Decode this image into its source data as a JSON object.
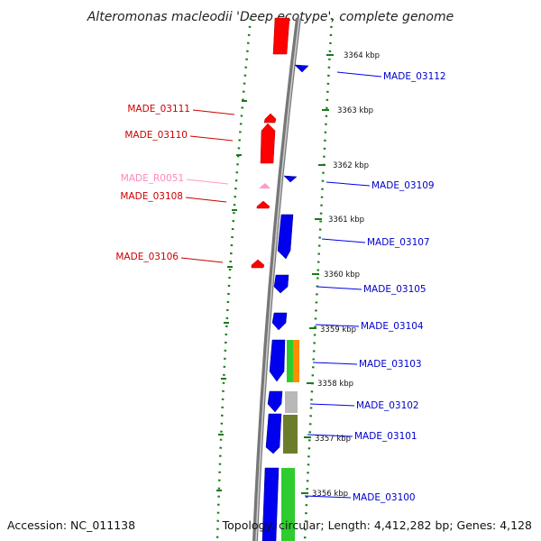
{
  "title": "Alteromonas macleodii 'Deep ecotype', complete genome",
  "accession": "Accession: NC_011138",
  "topology": "Topology: circular; Length: 4,412,282 bp; Genes: 4,128",
  "colors": {
    "forward": "#ff0000",
    "reverse": "#0000ee",
    "rna": "#ff99cc",
    "scale": "#1a7a1a",
    "backbone": "#888888"
  },
  "scale_marks": [
    {
      "label": "3364 kbp"
    },
    {
      "label": "3363 kbp"
    },
    {
      "label": "3362 kbp"
    },
    {
      "label": "3361 kbp"
    },
    {
      "label": "3360 kbp"
    },
    {
      "label": "3359 kbp"
    },
    {
      "label": "3358 kbp"
    },
    {
      "label": "3357 kbp"
    },
    {
      "label": "3356 kbp"
    }
  ],
  "left_labels": [
    {
      "text": "MADE_03111",
      "kind": "forward"
    },
    {
      "text": "MADE_03110",
      "kind": "forward"
    },
    {
      "text": "MADE_R0051",
      "kind": "rna"
    },
    {
      "text": "MADE_03108",
      "kind": "forward"
    },
    {
      "text": "MADE_03106",
      "kind": "forward"
    }
  ],
  "right_labels": [
    {
      "text": "MADE_03112"
    },
    {
      "text": "MADE_03109"
    },
    {
      "text": "MADE_03107"
    },
    {
      "text": "MADE_03105"
    },
    {
      "text": "MADE_03104"
    },
    {
      "text": "MADE_03103"
    },
    {
      "text": "MADE_03102"
    },
    {
      "text": "MADE_03101"
    },
    {
      "text": "MADE_03100"
    }
  ]
}
